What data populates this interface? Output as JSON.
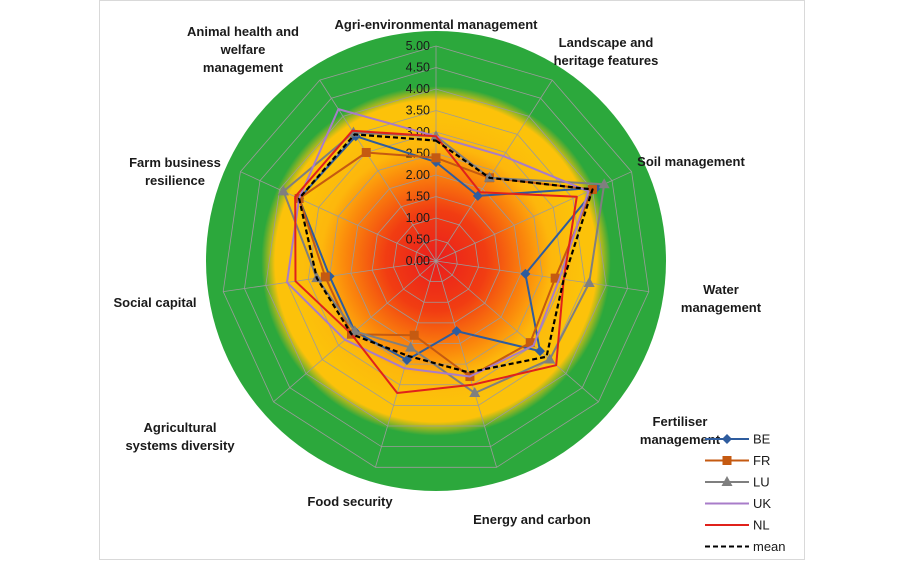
{
  "chart_data": {
    "type": "radar",
    "axes": [
      "Agri-environmental management",
      "Landscape and heritage features",
      "Soil management",
      "Water management",
      "Fertiliser management",
      "Energy and carbon",
      "Food security",
      "Agricultural systems diversity",
      "Social capital",
      "Farm business resilience",
      "Animal health and welfare management"
    ],
    "axis_label_lines": [
      [
        "Agri-environmental management"
      ],
      [
        "Landscape and",
        "heritage features"
      ],
      [
        "Soil management"
      ],
      [
        "Water",
        "management"
      ],
      [
        "Fertiliser",
        "management"
      ],
      [
        "Energy and carbon"
      ],
      [
        "Food security"
      ],
      [
        "Agricultural",
        "systems diversity"
      ],
      [
        "Social capital"
      ],
      [
        "Farm business",
        "resilience"
      ],
      [
        "Animal health and",
        "welfare",
        "management"
      ]
    ],
    "ticks": [
      "0.00",
      "0.50",
      "1.00",
      "1.50",
      "2.00",
      "2.50",
      "3.00",
      "3.50",
      "4.00",
      "4.50",
      "5.00"
    ],
    "range": [
      0,
      5
    ],
    "series": [
      {
        "name": "BE",
        "color": "#2e5c9e",
        "marker": "diamond",
        "dash": false,
        "values": [
          2.3,
          1.8,
          4.1,
          2.1,
          3.2,
          1.7,
          2.4,
          2.5,
          2.5,
          3.5,
          3.45
        ]
      },
      {
        "name": "FR",
        "color": "#c55a11",
        "marker": "square",
        "dash": false,
        "values": [
          2.4,
          2.3,
          4.0,
          2.8,
          2.9,
          2.8,
          1.8,
          2.6,
          2.6,
          3.5,
          3.0
        ]
      },
      {
        "name": "LU",
        "color": "#7f7f7f",
        "marker": "triangle",
        "dash": false,
        "values": [
          2.9,
          2.3,
          4.3,
          3.6,
          3.5,
          3.2,
          2.1,
          2.5,
          2.8,
          3.9,
          3.55
        ]
      },
      {
        "name": "UK",
        "color": "#a87cc9",
        "marker": "none",
        "dash": false,
        "values": [
          2.9,
          2.9,
          3.9,
          2.9,
          3.0,
          2.8,
          2.6,
          2.8,
          3.5,
          3.5,
          4.2
        ]
      },
      {
        "name": "NL",
        "color": "#e0211b",
        "marker": "none",
        "dash": false,
        "values": [
          2.9,
          1.9,
          3.6,
          3.0,
          3.7,
          3.0,
          3.2,
          2.6,
          3.3,
          3.6,
          3.6
        ]
      },
      {
        "name": "mean",
        "color": "#000000",
        "marker": "none",
        "dash": true,
        "values": [
          2.8,
          2.3,
          4.0,
          3.0,
          3.4,
          2.7,
          2.3,
          2.6,
          2.8,
          3.5,
          3.5
        ]
      }
    ],
    "background_zones": [
      {
        "color": "#2ca83c",
        "from": 3.5,
        "to": 5.0
      },
      {
        "color": "#fcc20a",
        "from": 2.0,
        "to": 3.5
      },
      {
        "color": "#f03a12",
        "from": 0.0,
        "to": 2.0
      }
    ],
    "legend_position": "bottom-right",
    "grid": true
  }
}
